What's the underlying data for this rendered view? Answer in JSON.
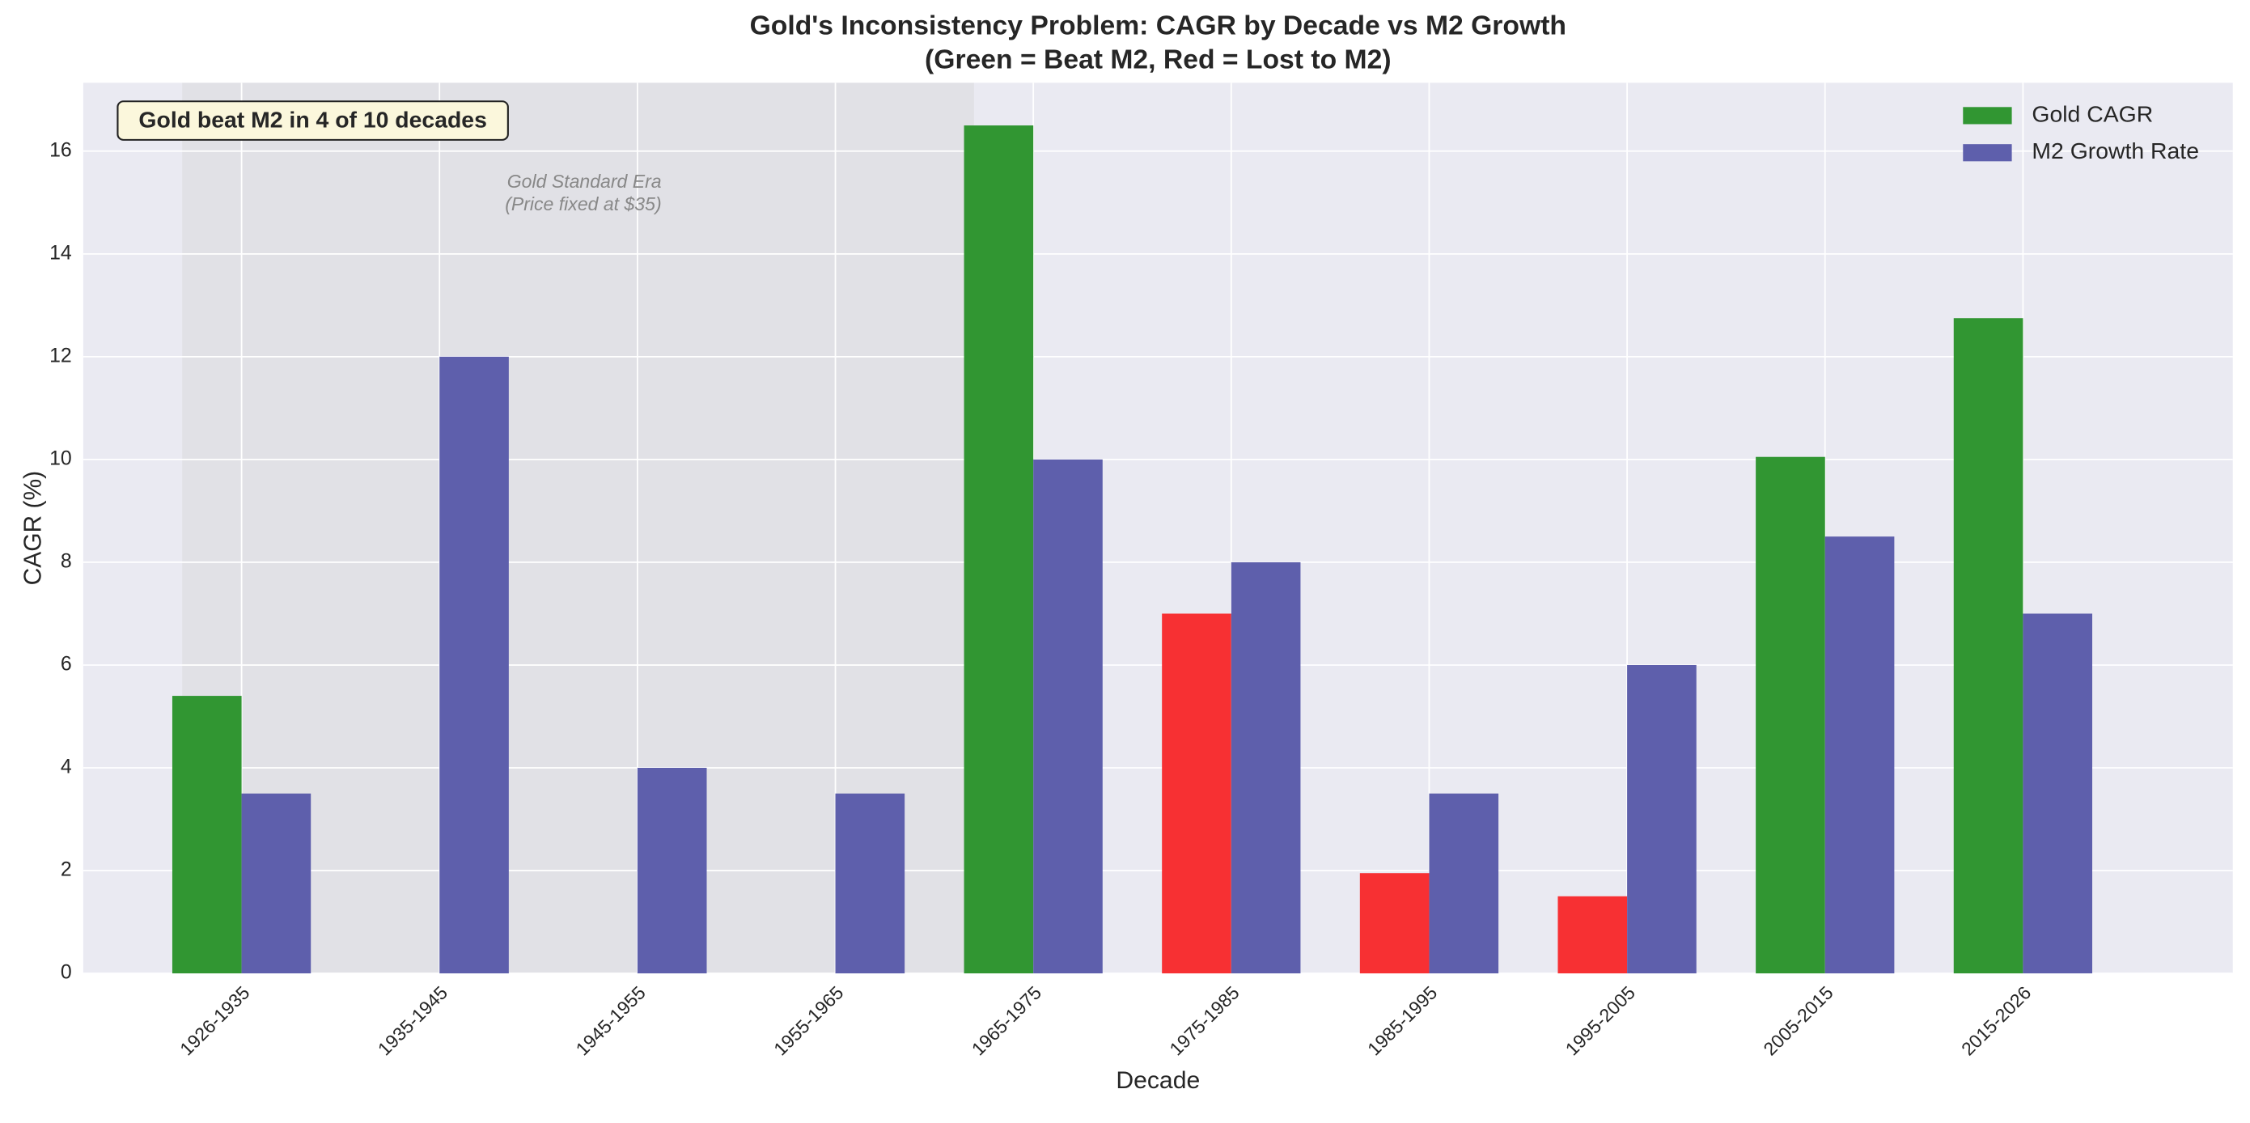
{
  "chart_data": {
    "type": "bar",
    "title": "Gold's Inconsistency Problem: CAGR by Decade vs M2 Growth",
    "subtitle": "(Green = Beat M2, Red = Lost to M2)",
    "xlabel": "Decade",
    "ylabel": "CAGR (%)",
    "categories": [
      "1926-1935",
      "1935-1945",
      "1945-1955",
      "1955-1965",
      "1965-1975",
      "1975-1985",
      "1985-1995",
      "1995-2005",
      "2005-2015",
      "2015-2026"
    ],
    "series": [
      {
        "name": "Gold CAGR",
        "color": "#319632",
        "bar_colors": [
          "#319632",
          "#f73033",
          "#f73033",
          "#f73033",
          "#319632",
          "#f73033",
          "#f73033",
          "#f73033",
          "#319632",
          "#319632"
        ],
        "values": [
          5.4,
          0,
          0,
          0,
          16.5,
          7.0,
          1.95,
          1.5,
          10.05,
          12.75
        ]
      },
      {
        "name": "M2 Growth Rate",
        "color": "#5e5fac",
        "values": [
          3.5,
          12,
          4,
          3.5,
          10,
          8,
          3.5,
          6,
          8.5,
          7
        ]
      }
    ],
    "ylim": [
      0,
      17.33
    ],
    "yticks": [
      0,
      2,
      4,
      6,
      8,
      10,
      12,
      14,
      16
    ],
    "xlim": [
      -0.8,
      10.06
    ],
    "shaded_region": [
      -0.3,
      3.7
    ],
    "shaded_labels": [
      "Gold Standard Era",
      "(Price fixed at $35)"
    ],
    "annotation": "Gold beat M2 in 4 of 10 decades",
    "grid": true,
    "legend": "upper right"
  }
}
